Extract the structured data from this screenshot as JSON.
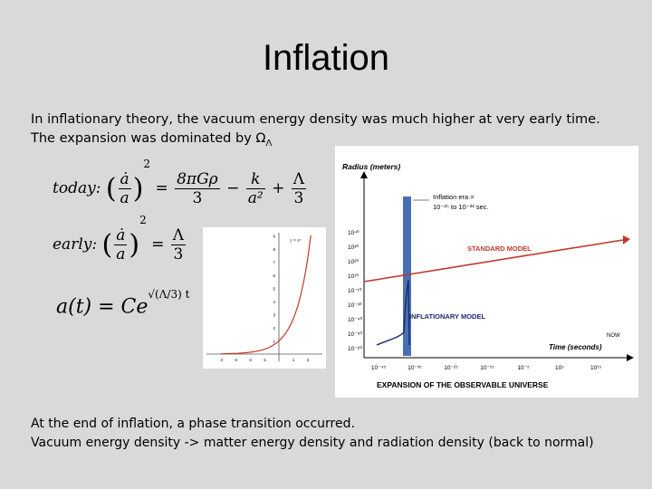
{
  "slide": {
    "title": "Inflation",
    "intro_line1": "In inflationary theory, the vacuum energy density was much higher at very early time.",
    "intro_line2": "The expansion was dominated by Ω",
    "intro_line2_sub": "Λ",
    "bottom_line1": "At the end of inflation, a phase transition occurred.",
    "bottom_line2": "Vacuum energy density -> matter energy density  and radiation density (back to normal)"
  },
  "equations": {
    "today_label": "today:",
    "early_label": "early:",
    "adot": "ȧ",
    "a": "a",
    "eq_sign": "=",
    "today_t1_num": "8πGρ",
    "today_t1_den": "3",
    "minus": "−",
    "today_t2_num": "k",
    "today_t2_den": "a²",
    "plus": "+",
    "lambda": "Λ",
    "three": "3",
    "square": "2",
    "solution_lhs": "a(t) = Ce",
    "solution_exp": "√(Λ/3) t"
  },
  "exp_chart": {
    "legend": "y = eˣ",
    "x_ticks": [
      "-4",
      "-3",
      "-2",
      "-1",
      "1",
      "2"
    ],
    "y_ticks": [
      "1",
      "2",
      "3",
      "4",
      "5",
      "6",
      "7",
      "8",
      "9"
    ],
    "colors": {
      "curve": "#c0392b",
      "axis": "#555555"
    }
  },
  "universe_chart": {
    "y_axis_label": "Radius (meters)",
    "x_axis_label": "Time (seconds)",
    "now_label": "NOW",
    "inflation_era_label_1": "Inflation era =",
    "inflation_era_label_2": "10⁻³⁵ to 10⁻³³ sec.",
    "standard_model_label": "STANDARD MODEL",
    "inflationary_model_label": "INFLATIONARY MODEL",
    "caption": "EXPANSION OF THE OBSERVABLE UNIVERSE",
    "y_ticks": [
      "10⁴⁰",
      "10³⁰",
      "10²⁰",
      "10¹⁰",
      "10⁻¹⁰",
      "10⁻³⁰",
      "10⁻⁴⁰",
      "10⁻⁵⁰",
      "10⁻⁶⁰"
    ],
    "x_ticks": [
      "10⁻⁴⁵",
      "10⁻³⁵",
      "10⁻²⁵",
      "10⁻¹⁵",
      "10⁻⁵",
      "10⁵",
      "10¹⁵"
    ],
    "colors": {
      "standard": "#c0392b",
      "inflationary": "#1a2a6c",
      "band": "#4a6fb5",
      "axis": "#000000"
    }
  }
}
